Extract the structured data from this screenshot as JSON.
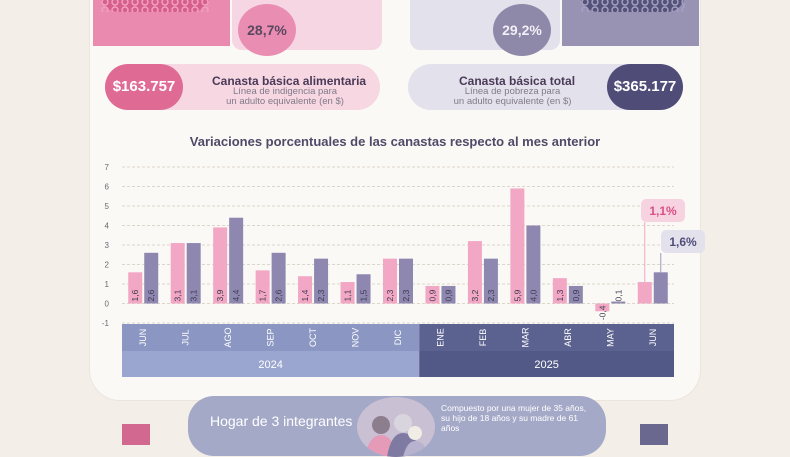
{
  "top": {
    "left_percent": "28,7%",
    "right_percent": "29,2%"
  },
  "cba": {
    "value": "$163.757",
    "title": "Canasta básica alimentaria",
    "subtitle_line1": "Línea de indigencia para",
    "subtitle_line2": "un adulto equivalente (en $)",
    "color": "#df6b95"
  },
  "cbt": {
    "value": "$365.177",
    "title": "Canasta básica total",
    "subtitle_line1": "Línea de pobreza para",
    "subtitle_line2": "un adulto equivalente (en $)",
    "color": "#4f4d78"
  },
  "chart_data": {
    "type": "bar",
    "title": "Variaciones porcentuales de las canastas respecto al mes anterior",
    "categories": [
      "JUN",
      "JUL",
      "AGO",
      "SEP",
      "OCT",
      "NOV",
      "DIC",
      "ENE",
      "FEB",
      "MAR",
      "ABR",
      "MAY",
      "JUN"
    ],
    "years": [
      {
        "label": "2024",
        "first_index": 0,
        "last_index": 6
      },
      {
        "label": "2025",
        "first_index": 7,
        "last_index": 12
      }
    ],
    "series": [
      {
        "name": "Canasta básica alimentaria",
        "color": "#f2a7c4",
        "values": [
          1.6,
          3.1,
          3.9,
          1.7,
          1.4,
          1.1,
          2.3,
          0.9,
          3.2,
          5.9,
          1.3,
          -0.4,
          1.1
        ],
        "labels": [
          "1,6",
          "3,1",
          "3,9",
          "1,7",
          "1,4",
          "1,1",
          "2,3",
          "0,9",
          "3,2",
          "5,9",
          "1,3",
          "-0,4",
          ""
        ]
      },
      {
        "name": "Canasta básica total",
        "color": "#8e88b0",
        "values": [
          2.6,
          3.1,
          4.4,
          2.6,
          2.3,
          1.5,
          2.3,
          0.9,
          2.3,
          4.0,
          0.9,
          0.1,
          1.6
        ],
        "labels": [
          "2,6",
          "3,1",
          "4,4",
          "2,6",
          "2,3",
          "1,5",
          "2,3",
          "0,9",
          "2,3",
          "4,0",
          "0,9",
          "0,1",
          ""
        ]
      }
    ],
    "ylim": [
      -1,
      7
    ],
    "yticks": [
      -1,
      0,
      1,
      2,
      3,
      4,
      5,
      6,
      7
    ],
    "grid": true,
    "callouts": {
      "cba_last": "1,1%",
      "cbt_last": "1,6%"
    }
  },
  "hogar": {
    "title": "Hogar de 3 integrantes",
    "description": "Compuesto por una mujer de 35 años, su hijo de 18 años y su madre de 61 años"
  }
}
